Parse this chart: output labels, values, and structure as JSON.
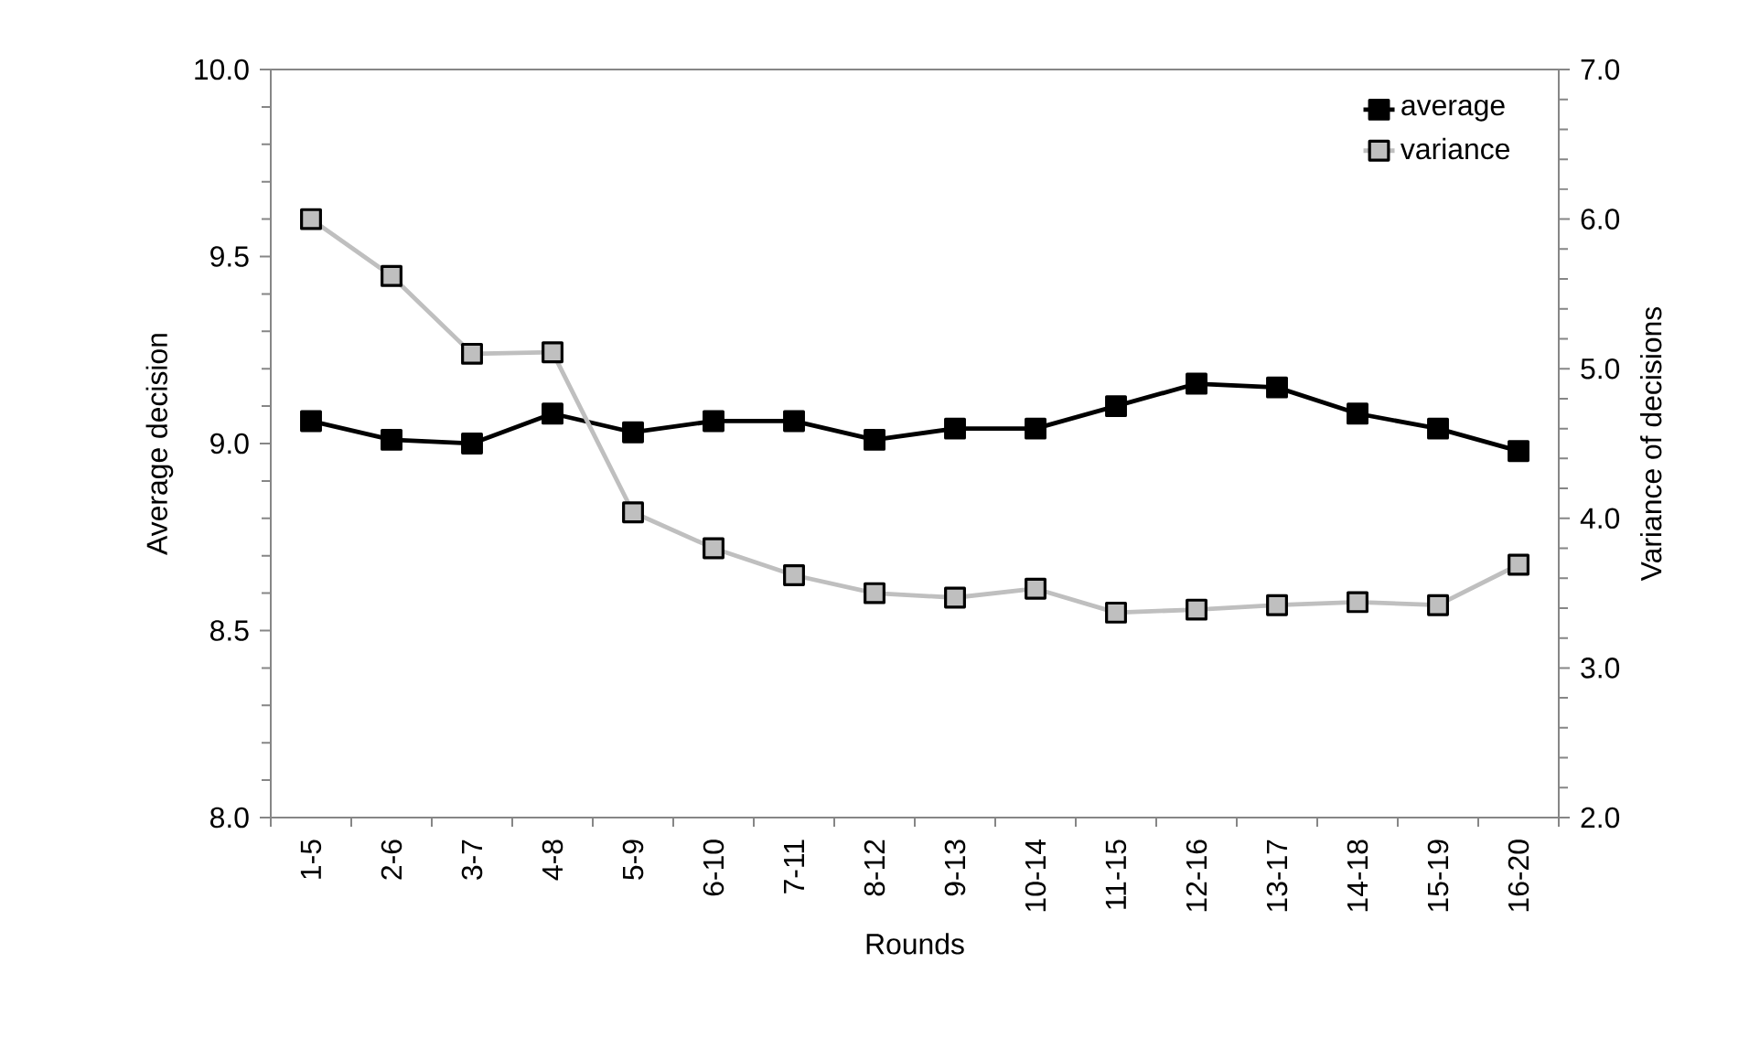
{
  "chart_data": {
    "type": "line",
    "xlabel": "Rounds",
    "ylabel": "Average decision",
    "y2label": "Variance of decisions",
    "categories": [
      "1-5",
      "2-6",
      "3-7",
      "4-8",
      "5-9",
      "6-10",
      "7-11",
      "8-12",
      "9-13",
      "10-14",
      "11-15",
      "12-16",
      "13-17",
      "14-18",
      "15-19",
      "16-20"
    ],
    "series": [
      {
        "name": "average",
        "color": "#000000",
        "values": [
          9.06,
          9.01,
          9.0,
          9.08,
          9.03,
          9.06,
          9.06,
          9.01,
          9.04,
          9.04,
          9.1,
          9.16,
          9.15,
          9.08,
          9.04,
          8.98
        ]
      },
      {
        "name": "variance",
        "color": "#bfbfbf",
        "axis": "y2",
        "values": [
          6.0,
          5.62,
          5.1,
          5.11,
          4.04,
          3.8,
          3.62,
          3.5,
          3.47,
          3.53,
          3.37,
          3.39,
          3.42,
          3.44,
          3.42,
          3.69
        ]
      }
    ],
    "ylim": [
      8,
      10
    ],
    "yticks": [
      {
        "value": 8,
        "label": "8.0"
      },
      8.5,
      {
        "value": 9,
        "label": "9.0"
      },
      9.5,
      {
        "value": 10,
        "label": "10.0"
      }
    ],
    "y2lim": [
      2,
      7
    ],
    "y2ticks": [
      {
        "value": 2,
        "label": "2.0"
      },
      {
        "value": 3,
        "label": "3.0"
      },
      {
        "value": 4,
        "label": "4.0"
      },
      {
        "value": 5,
        "label": "5.0"
      },
      {
        "value": 6,
        "label": "6.0"
      },
      {
        "value": 7,
        "label": "7.0"
      }
    ],
    "marker": "square",
    "line_style": "solid",
    "legend": "top right"
  }
}
